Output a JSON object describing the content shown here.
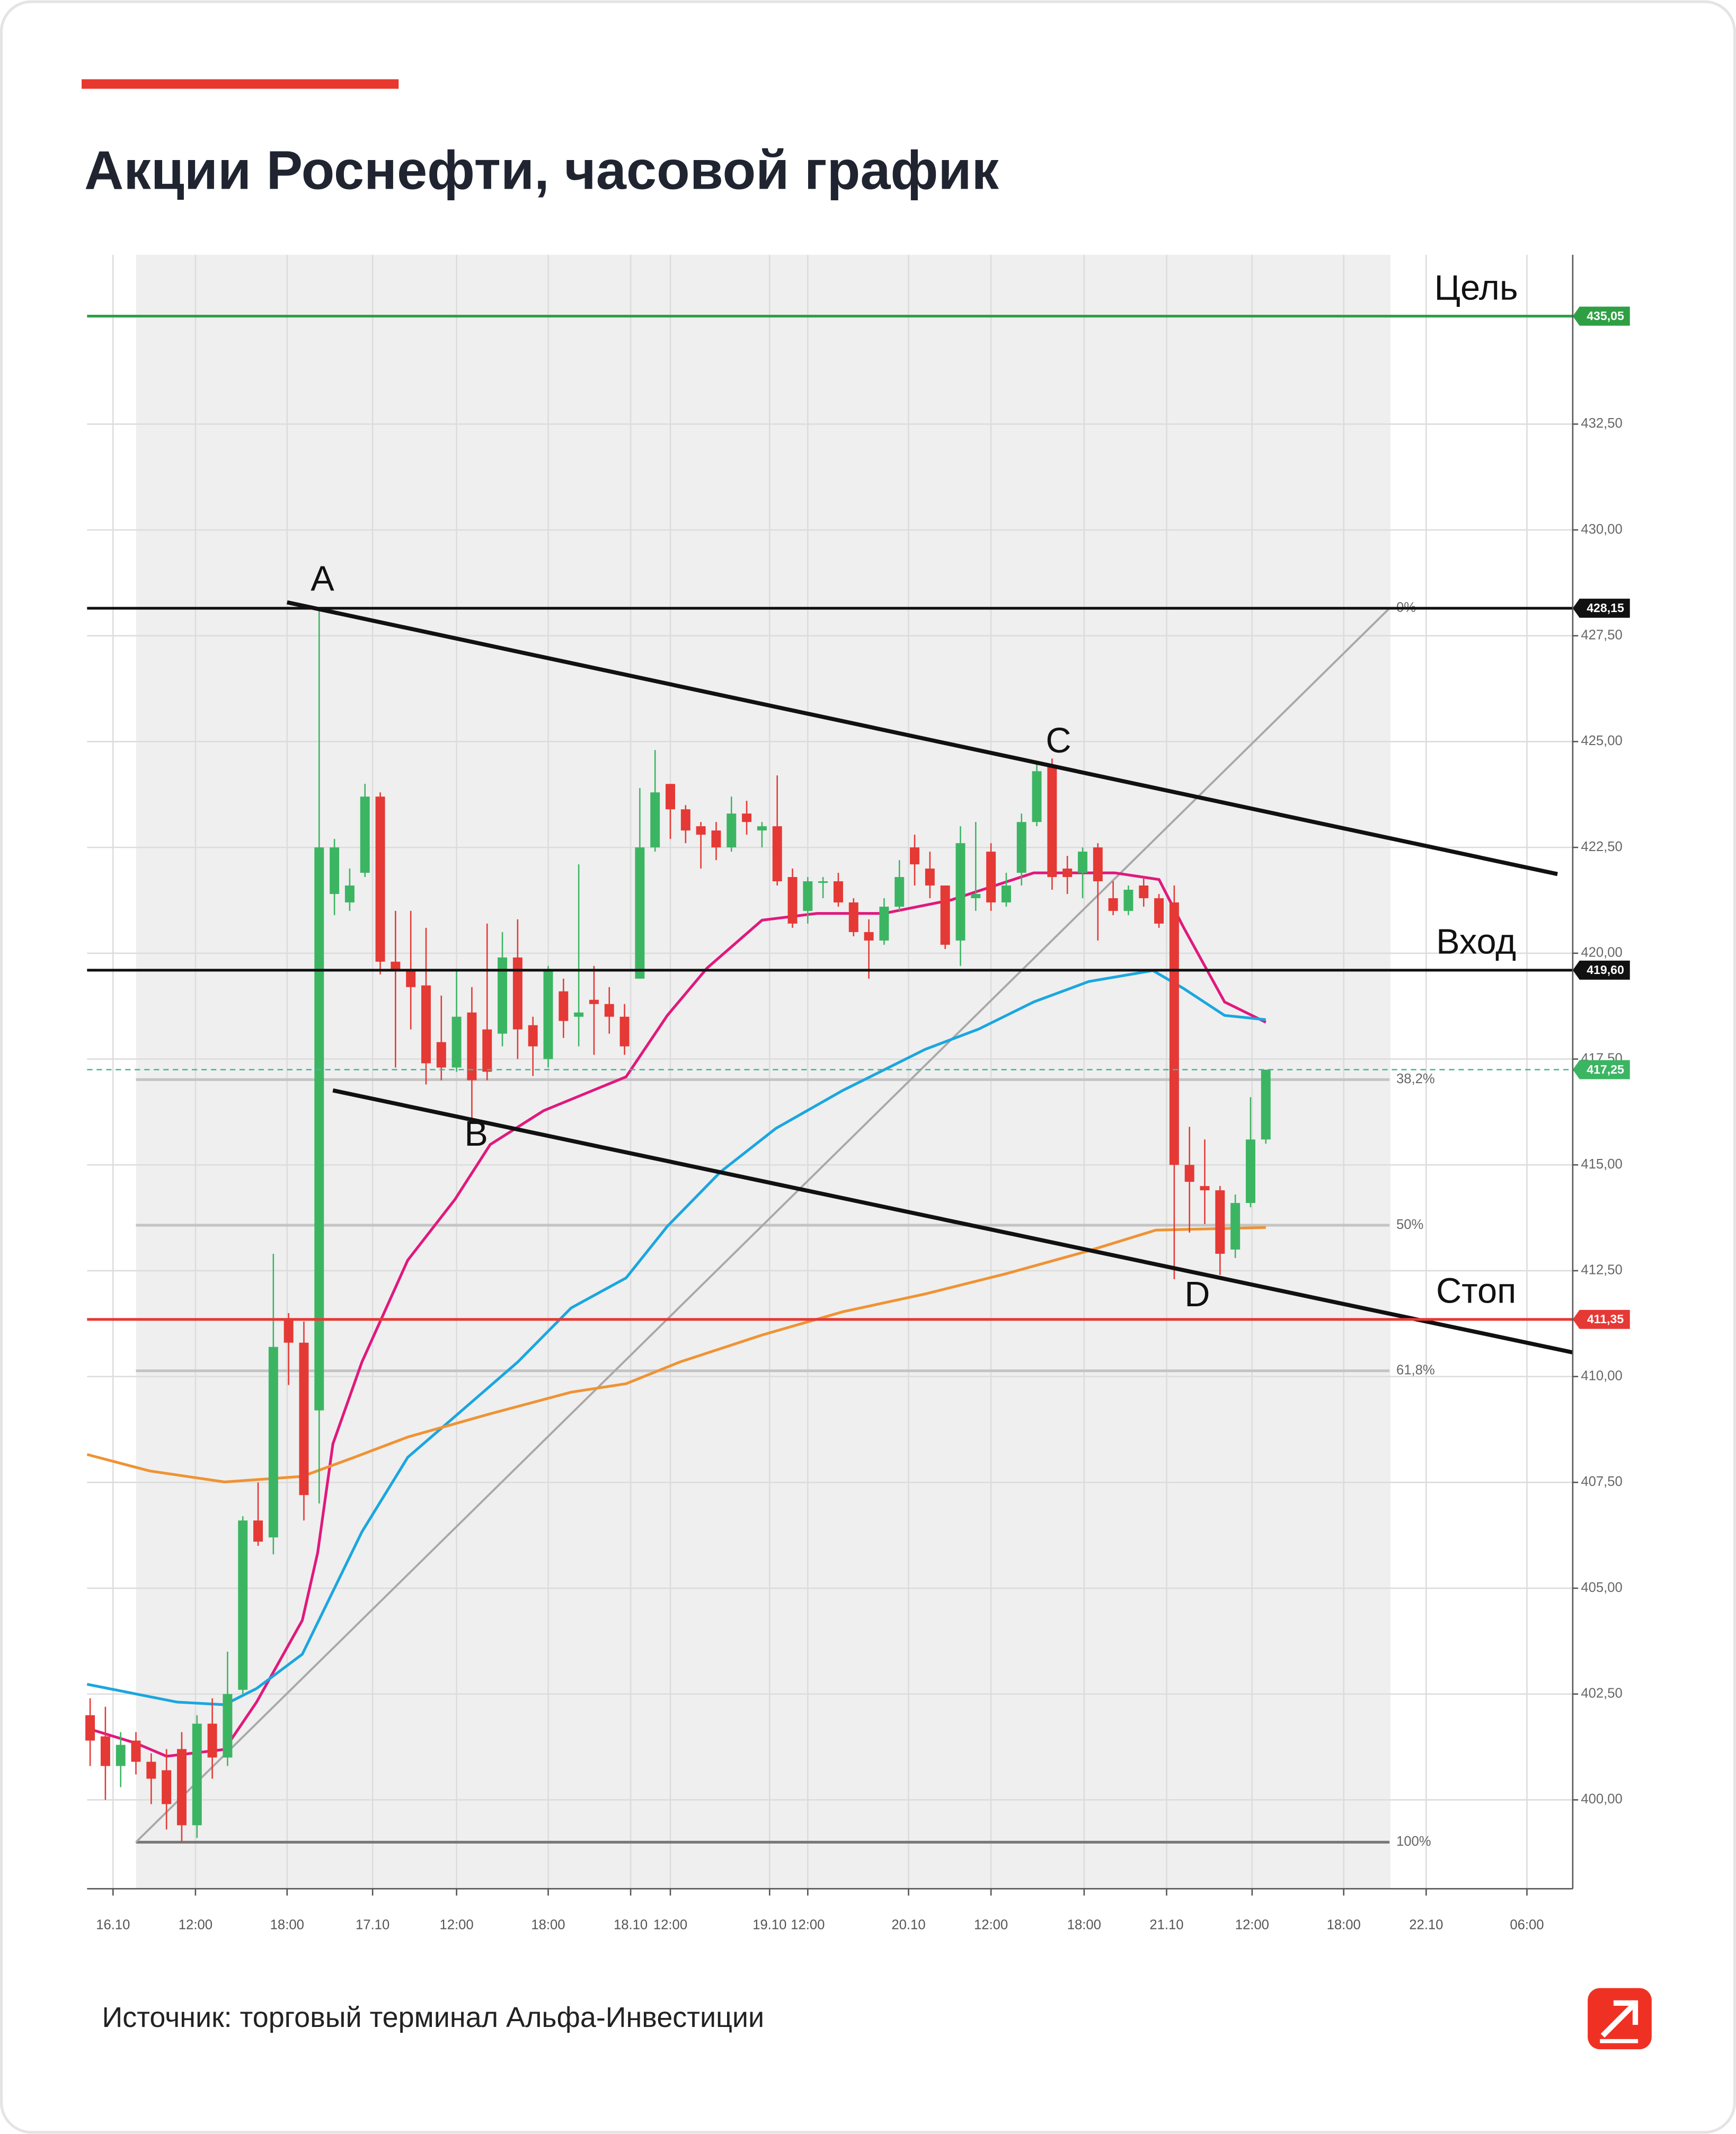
{
  "chart_data": {
    "type": "candlestick",
    "title": "Акции Роснефти, часовой график",
    "source": "Источник: торговый терминал Альфа-Инвестиции",
    "categories": [
      null,
      null,
      null,
      null,
      null,
      null,
      null,
      null,
      null,
      null,
      null,
      null,
      null,
      null,
      null,
      null,
      null,
      null,
      null,
      null,
      null,
      null,
      null,
      null,
      null,
      null,
      null,
      null,
      null,
      null,
      null,
      null,
      null,
      null,
      null,
      null,
      null,
      null,
      null,
      null,
      null,
      null,
      null,
      null,
      null,
      null,
      null,
      null,
      null,
      null,
      null,
      null,
      null,
      null,
      null,
      null,
      null,
      null,
      null,
      null,
      null,
      null,
      null,
      null,
      null,
      null,
      null,
      null,
      null,
      null,
      null,
      null,
      null,
      null,
      null,
      null,
      null,
      null
    ],
    "open": [
      402.0,
      401.5,
      400.8,
      401.4,
      400.9,
      400.7,
      401.2,
      399.4,
      401.8,
      401.0,
      402.6,
      406.6,
      406.2,
      411.35,
      410.8,
      409.2,
      421.4,
      421.2,
      421.9,
      423.7,
      419.8,
      419.6,
      419.24,
      417.9,
      417.3,
      418.6,
      418.2,
      418.1,
      419.9,
      418.3,
      417.5,
      419.1,
      418.5,
      418.9,
      418.8,
      418.5,
      419.4,
      422.5,
      424.0,
      423.4,
      423.0,
      422.9,
      422.5,
      423.3,
      422.9,
      423.0,
      421.8,
      421.0,
      421.7,
      421.7,
      421.2,
      420.5,
      420.3,
      421.1,
      422.5,
      422.0,
      421.6,
      420.3,
      421.3,
      422.4,
      421.2,
      421.9,
      423.1,
      424.4,
      422.0,
      421.9,
      422.5,
      421.3,
      421.0,
      421.6,
      421.3,
      421.2,
      415.0,
      414.5,
      414.4,
      413.0,
      414.1,
      415.6
    ],
    "high": [
      402.4,
      402.2,
      401.6,
      401.6,
      401.1,
      401.2,
      401.6,
      402.0,
      402.4,
      403.5,
      406.7,
      407.5,
      412.9,
      411.5,
      411.3,
      428.15,
      422.7,
      422.0,
      424.0,
      423.8,
      421.0,
      421.0,
      420.6,
      419.0,
      419.6,
      419.2,
      420.7,
      420.5,
      420.8,
      418.5,
      419.7,
      419.4,
      422.1,
      419.7,
      419.2,
      418.8,
      423.9,
      424.8,
      424.0,
      423.5,
      423.1,
      423.1,
      423.7,
      423.6,
      423.1,
      424.2,
      422.0,
      421.8,
      421.8,
      421.9,
      421.3,
      420.8,
      421.3,
      422.2,
      422.8,
      422.4,
      421.6,
      423.0,
      423.1,
      422.6,
      421.9,
      423.3,
      424.5,
      424.6,
      422.3,
      422.5,
      422.6,
      421.7,
      421.6,
      421.8,
      421.4,
      421.6,
      415.9,
      415.6,
      414.5,
      414.3,
      416.6,
      417.25
    ],
    "low": [
      400.8,
      400.0,
      400.3,
      400.6,
      399.9,
      399.3,
      399.0,
      399.1,
      400.5,
      400.8,
      402.5,
      406.0,
      405.8,
      409.8,
      406.6,
      407.0,
      420.9,
      421.0,
      421.8,
      419.5,
      417.3,
      418.2,
      416.9,
      417.0,
      417.2,
      416.1,
      417.0,
      417.8,
      417.5,
      417.1,
      417.3,
      418.0,
      417.8,
      417.6,
      418.1,
      417.6,
      419.4,
      422.4,
      422.7,
      422.6,
      422.0,
      422.2,
      422.4,
      422.8,
      422.5,
      421.6,
      420.6,
      420.7,
      421.3,
      421.1,
      420.4,
      419.4,
      420.2,
      421.0,
      421.6,
      421.3,
      420.1,
      419.7,
      421.0,
      421.0,
      421.1,
      421.6,
      423.0,
      421.5,
      421.4,
      421.3,
      420.3,
      420.9,
      420.9,
      421.1,
      420.6,
      412.3,
      413.4,
      413.6,
      412.4,
      412.8,
      414.0,
      415.5
    ],
    "close": [
      401.4,
      400.8,
      401.3,
      400.9,
      400.5,
      399.9,
      399.4,
      401.8,
      401.0,
      402.5,
      406.6,
      406.1,
      410.7,
      410.8,
      407.2,
      422.5,
      422.5,
      421.6,
      423.7,
      419.8,
      419.6,
      419.2,
      417.4,
      417.3,
      418.5,
      417.0,
      417.2,
      419.9,
      418.2,
      417.8,
      419.6,
      418.4,
      418.6,
      418.8,
      418.5,
      417.8,
      422.5,
      423.8,
      423.4,
      422.9,
      422.8,
      422.5,
      423.3,
      423.1,
      423.0,
      421.7,
      420.7,
      421.7,
      421.7,
      421.2,
      420.5,
      420.3,
      421.1,
      421.8,
      422.1,
      421.6,
      420.2,
      422.6,
      421.4,
      421.2,
      421.6,
      423.1,
      424.3,
      421.8,
      421.8,
      422.4,
      421.7,
      421.0,
      421.5,
      421.3,
      420.7,
      415.0,
      414.6,
      414.4,
      412.9,
      414.1,
      415.6,
      417.25
    ],
    "up_color": "#3cb563",
    "down_color": "#e53935",
    "lines": [
      {
        "color": "#e0197d",
        "x": [
          0,
          3.0,
          5.0,
          8.8,
          10.9,
          13.9,
          14.9,
          15.9,
          17.8,
          20.8,
          23.9,
          26.2,
          29.7,
          35.1,
          37.8,
          40.4,
          44.0,
          47.6,
          52.0,
          56.4,
          61.8,
          67.1,
          70.0,
          71.6,
          74.3,
          77.0
        ],
        "values": [
          401.67,
          401.34,
          401.03,
          401.19,
          402.31,
          404.24,
          405.84,
          408.41,
          410.34,
          412.75,
          414.19,
          415.48,
          416.28,
          417.08,
          418.53,
          419.65,
          420.78,
          420.94,
          420.94,
          421.26,
          421.9,
          421.9,
          421.74,
          420.62,
          418.85,
          418.37
        ]
      },
      {
        "color": "#1ba6e0",
        "x": [
          -0.2,
          5.7,
          8.8,
          10.9,
          13.9,
          17.8,
          20.8,
          23.9,
          28.0,
          31.5,
          35.1,
          37.8,
          41.3,
          44.9,
          49.3,
          54.7,
          58.2,
          61.8,
          65.4,
          69.6,
          71.6,
          74.3,
          77.0
        ],
        "values": [
          402.73,
          402.31,
          402.25,
          402.63,
          403.44,
          406.33,
          408.09,
          409.06,
          410.34,
          411.62,
          412.33,
          413.55,
          414.84,
          415.86,
          416.76,
          417.73,
          418.21,
          418.85,
          419.33,
          419.59,
          419.17,
          418.53,
          418.43
        ]
      },
      {
        "color": "#ef9334",
        "x": [
          -0.2,
          3.9,
          8.8,
          13.9,
          17.3,
          20.8,
          26.2,
          31.5,
          35.1,
          38.6,
          44.0,
          49.3,
          54.7,
          60.0,
          65.4,
          69.8,
          77.0
        ],
        "values": [
          408.16,
          407.77,
          407.51,
          407.64,
          408.09,
          408.57,
          409.12,
          409.63,
          409.83,
          410.34,
          410.98,
          411.53,
          411.95,
          412.43,
          412.97,
          413.46,
          413.52
        ]
      }
    ],
    "levels": [
      {
        "value": 435.05,
        "label": "435,05",
        "name": "Цель",
        "color": "#2ea043"
      },
      {
        "value": 428.15,
        "label": "428,15",
        "color": "#111111"
      },
      {
        "value": 419.6,
        "label": "419,60",
        "name": "Вход",
        "color": "#111111"
      },
      {
        "value": 417.25,
        "label": "417,25",
        "color": "#3cb563",
        "dashed": true
      },
      {
        "value": 411.35,
        "label": "411,35",
        "name": "Стоп",
        "color": "#e53935"
      }
    ],
    "fibonacci": {
      "x": [
        3.0,
        85.1
      ],
      "y": [
        399.0,
        428.15
      ],
      "levels": [
        {
          "value": 0,
          "label": "0%"
        },
        {
          "value": 38.2,
          "label": "38,2%"
        },
        {
          "value": 50,
          "label": "50%"
        },
        {
          "value": 61.8,
          "label": "61,8%"
        },
        {
          "value": 100,
          "label": "100%"
        }
      ]
    },
    "trendlines": [
      {
        "x": [
          12.9,
          96.1
        ],
        "y": [
          428.29,
          421.87
        ]
      },
      {
        "x": [
          15.9,
          97.1
        ],
        "y": [
          416.76,
          410.57
        ]
      }
    ],
    "points": [
      "A",
      "B",
      "C",
      "D"
    ],
    "xlim": [
      -0.2,
      97.1
    ],
    "xticks": [
      {
        "value": 1.5,
        "label": "16.10"
      },
      {
        "value": 6.9,
        "label": "12:00"
      },
      {
        "value": 12.9,
        "label": "18:00"
      },
      {
        "value": 18.5,
        "label": "17.10"
      },
      {
        "value": 24.0,
        "label": "12:00"
      },
      {
        "value": 30.0,
        "label": "18:00"
      },
      {
        "value": 35.4,
        "label": "18.10"
      },
      {
        "value": 38.0,
        "label": "12:00"
      },
      {
        "value": 44.5,
        "label": "19.10"
      },
      {
        "value": 47.0,
        "label": "12:00"
      },
      {
        "value": 53.6,
        "label": "20.10"
      },
      {
        "value": 59.0,
        "label": "12:00"
      },
      {
        "value": 65.1,
        "label": "18:00"
      },
      {
        "value": 70.5,
        "label": "21.10"
      },
      {
        "value": 76.1,
        "label": "12:00"
      },
      {
        "value": 82.1,
        "label": "18:00"
      },
      {
        "value": 87.5,
        "label": "22.10"
      },
      {
        "value": 94.1,
        "label": "06:00"
      }
    ],
    "ylim": [
      397.9,
      436.5
    ],
    "yticks": [
      {
        "value": 400,
        "label": "400,00"
      },
      {
        "value": 402.5,
        "label": "402,50"
      },
      {
        "value": 405,
        "label": "405,00"
      },
      {
        "value": 407.5,
        "label": "407,50"
      },
      {
        "value": 410,
        "label": "410,00"
      },
      {
        "value": 412.5,
        "label": "412,50"
      },
      {
        "value": 415,
        "label": "415,00"
      },
      {
        "value": 417.5,
        "label": "417,50"
      },
      {
        "value": 420,
        "label": "420,00"
      },
      {
        "value": 422.5,
        "label": "422,50"
      },
      {
        "value": 425,
        "label": "425,00"
      },
      {
        "value": 427.5,
        "label": "427,50"
      },
      {
        "value": 430,
        "label": "430,00"
      },
      {
        "value": 432.5,
        "label": "432,50"
      }
    ],
    "grid": true
  }
}
